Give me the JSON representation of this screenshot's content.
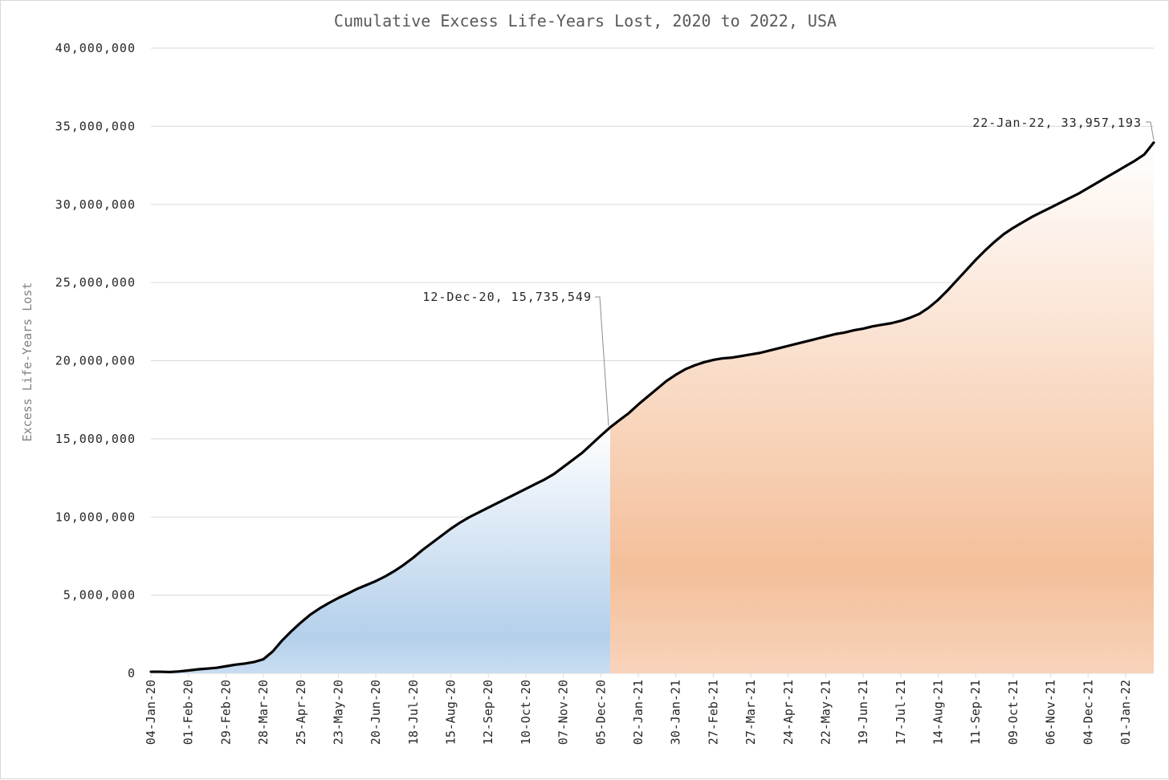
{
  "chart_data": {
    "type": "area",
    "title": "Cumulative Excess Life-Years Lost, 2020 to 2022, USA",
    "xlabel": "",
    "ylabel": "Excess Life-Years Lost",
    "ylim": [
      0,
      40000000
    ],
    "y_ticks": [
      "0",
      "5,000,000",
      "10,000,000",
      "15,000,000",
      "20,000,000",
      "25,000,000",
      "30,000,000",
      "35,000,000",
      "40,000,000"
    ],
    "x_tick_labels": [
      "04-Jan-20",
      "01-Feb-20",
      "29-Feb-20",
      "28-Mar-20",
      "25-Apr-20",
      "23-May-20",
      "20-Jun-20",
      "18-Jul-20",
      "15-Aug-20",
      "12-Sep-20",
      "10-Oct-20",
      "07-Nov-20",
      "05-Dec-20",
      "02-Jan-21",
      "30-Jan-21",
      "27-Feb-21",
      "27-Mar-21",
      "24-Apr-21",
      "22-May-21",
      "19-Jun-21",
      "17-Jul-21",
      "14-Aug-21",
      "11-Sep-21",
      "09-Oct-21",
      "06-Nov-21",
      "04-Dec-21",
      "01-Jan-22"
    ],
    "grid": true,
    "legend": "none",
    "colors": {
      "line": "#000000",
      "fill_period1": "#b4d0eb",
      "fill_period2": "#f4bf9a"
    },
    "series": [
      {
        "x": [
          "04-Jan-20",
          "11-Jan-20",
          "18-Jan-20",
          "25-Jan-20",
          "01-Feb-20",
          "08-Feb-20",
          "15-Feb-20",
          "22-Feb-20",
          "29-Feb-20",
          "07-Mar-20",
          "14-Mar-20",
          "21-Mar-20",
          "28-Mar-20",
          "04-Apr-20",
          "11-Apr-20",
          "18-Apr-20",
          "25-Apr-20",
          "02-May-20",
          "09-May-20",
          "16-May-20",
          "23-May-20",
          "30-May-20",
          "06-Jun-20",
          "13-Jun-20",
          "20-Jun-20",
          "27-Jun-20",
          "04-Jul-20",
          "11-Jul-20",
          "18-Jul-20",
          "25-Jul-20",
          "01-Aug-20",
          "08-Aug-20",
          "15-Aug-20",
          "22-Aug-20",
          "29-Aug-20",
          "05-Sep-20",
          "12-Sep-20",
          "19-Sep-20",
          "26-Sep-20",
          "03-Oct-20",
          "10-Oct-20",
          "17-Oct-20",
          "24-Oct-20",
          "31-Oct-20",
          "07-Nov-20",
          "14-Nov-20",
          "21-Nov-20",
          "28-Nov-20",
          "05-Dec-20",
          "12-Dec-20",
          "19-Dec-20",
          "26-Dec-20",
          "02-Jan-21",
          "09-Jan-21",
          "16-Jan-21",
          "23-Jan-21",
          "30-Jan-21",
          "06-Feb-21",
          "13-Feb-21",
          "20-Feb-21",
          "27-Feb-21",
          "06-Mar-21",
          "13-Mar-21",
          "20-Mar-21",
          "27-Mar-21",
          "03-Apr-21",
          "10-Apr-21",
          "17-Apr-21",
          "24-Apr-21",
          "01-May-21",
          "08-May-21",
          "15-May-21",
          "22-May-21",
          "29-May-21",
          "05-Jun-21",
          "12-Jun-21",
          "19-Jun-21",
          "26-Jun-21",
          "03-Jul-21",
          "10-Jul-21",
          "17-Jul-21",
          "24-Jul-21",
          "31-Jul-21",
          "07-Aug-21",
          "14-Aug-21",
          "21-Aug-21",
          "28-Aug-21",
          "04-Sep-21",
          "11-Sep-21",
          "18-Sep-21",
          "25-Sep-21",
          "02-Oct-21",
          "09-Oct-21",
          "16-Oct-21",
          "23-Oct-21",
          "30-Oct-21",
          "06-Nov-21",
          "13-Nov-21",
          "20-Nov-21",
          "27-Nov-21",
          "04-Dec-21",
          "11-Dec-21",
          "18-Dec-21",
          "25-Dec-21",
          "01-Jan-22",
          "08-Jan-22",
          "15-Jan-22",
          "22-Jan-22"
        ],
        "values": [
          100000,
          100000,
          80000,
          120000,
          180000,
          250000,
          300000,
          350000,
          450000,
          550000,
          620000,
          720000,
          900000,
          1400000,
          2100000,
          2700000,
          3250000,
          3750000,
          4150000,
          4500000,
          4820000,
          5100000,
          5400000,
          5650000,
          5900000,
          6200000,
          6550000,
          6950000,
          7400000,
          7900000,
          8350000,
          8800000,
          9250000,
          9650000,
          10000000,
          10300000,
          10600000,
          10900000,
          11200000,
          11500000,
          11800000,
          12100000,
          12400000,
          12750000,
          13200000,
          13650000,
          14100000,
          14650000,
          15200000,
          15735549,
          16200000,
          16650000,
          17200000,
          17700000,
          18200000,
          18700000,
          19100000,
          19450000,
          19700000,
          19900000,
          20050000,
          20150000,
          20200000,
          20300000,
          20400000,
          20500000,
          20650000,
          20800000,
          20950000,
          21100000,
          21250000,
          21400000,
          21550000,
          21700000,
          21800000,
          21950000,
          22050000,
          22200000,
          22300000,
          22400000,
          22550000,
          22750000,
          23000000,
          23400000,
          23900000,
          24500000,
          25150000,
          25800000,
          26450000,
          27050000,
          27600000,
          28100000,
          28500000,
          28850000,
          29200000,
          29500000,
          29800000,
          30100000,
          30400000,
          30700000,
          31050000,
          31400000,
          31750000,
          32100000,
          32450000,
          32800000,
          33200000,
          33957193
        ]
      }
    ],
    "split_after": "12-Dec-20",
    "annotations": [
      {
        "text": "12-Dec-20, 15,735,549",
        "x": "12-Dec-20",
        "y": 15735549
      },
      {
        "text": "22-Jan-22, 33,957,193",
        "x": "22-Jan-22",
        "y": 33957193
      }
    ]
  }
}
